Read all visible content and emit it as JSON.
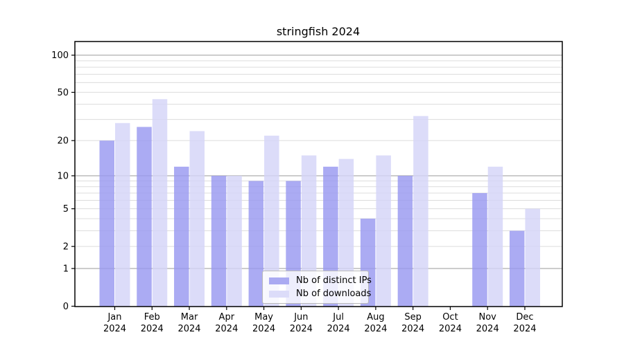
{
  "chart_data": {
    "type": "bar",
    "title": "stringfish 2024",
    "yscale": "log1p",
    "ylim": [
      0,
      128
    ],
    "yticks": [
      0,
      1,
      2,
      5,
      10,
      20,
      50,
      100
    ],
    "gridlines": {
      "major": [
        1,
        10,
        100
      ],
      "minor": [
        2,
        3,
        4,
        5,
        6,
        7,
        8,
        9,
        20,
        30,
        40,
        50,
        60,
        70,
        80,
        90
      ]
    },
    "grid": true,
    "legend_position": "lower center",
    "categories": [
      "Jan 2024",
      "Feb 2024",
      "Mar 2024",
      "Apr 2024",
      "May 2024",
      "Jun 2024",
      "Jul 2024",
      "Aug 2024",
      "Sep 2024",
      "Oct 2024",
      "Nov 2024",
      "Dec 2024"
    ],
    "series": [
      {
        "name": "Nb of distinct IPs",
        "color": "#9898f0",
        "legend_color": "#aaaaf2",
        "values": [
          20,
          26,
          12,
          10,
          9,
          9,
          12,
          4,
          10,
          0,
          7,
          3
        ]
      },
      {
        "name": "Nb of downloads",
        "color": "#d4d4f8",
        "legend_color": "#dcdcf9",
        "values": [
          28,
          44,
          24,
          10,
          22,
          15,
          14,
          15,
          32,
          0,
          12,
          5
        ]
      }
    ]
  }
}
